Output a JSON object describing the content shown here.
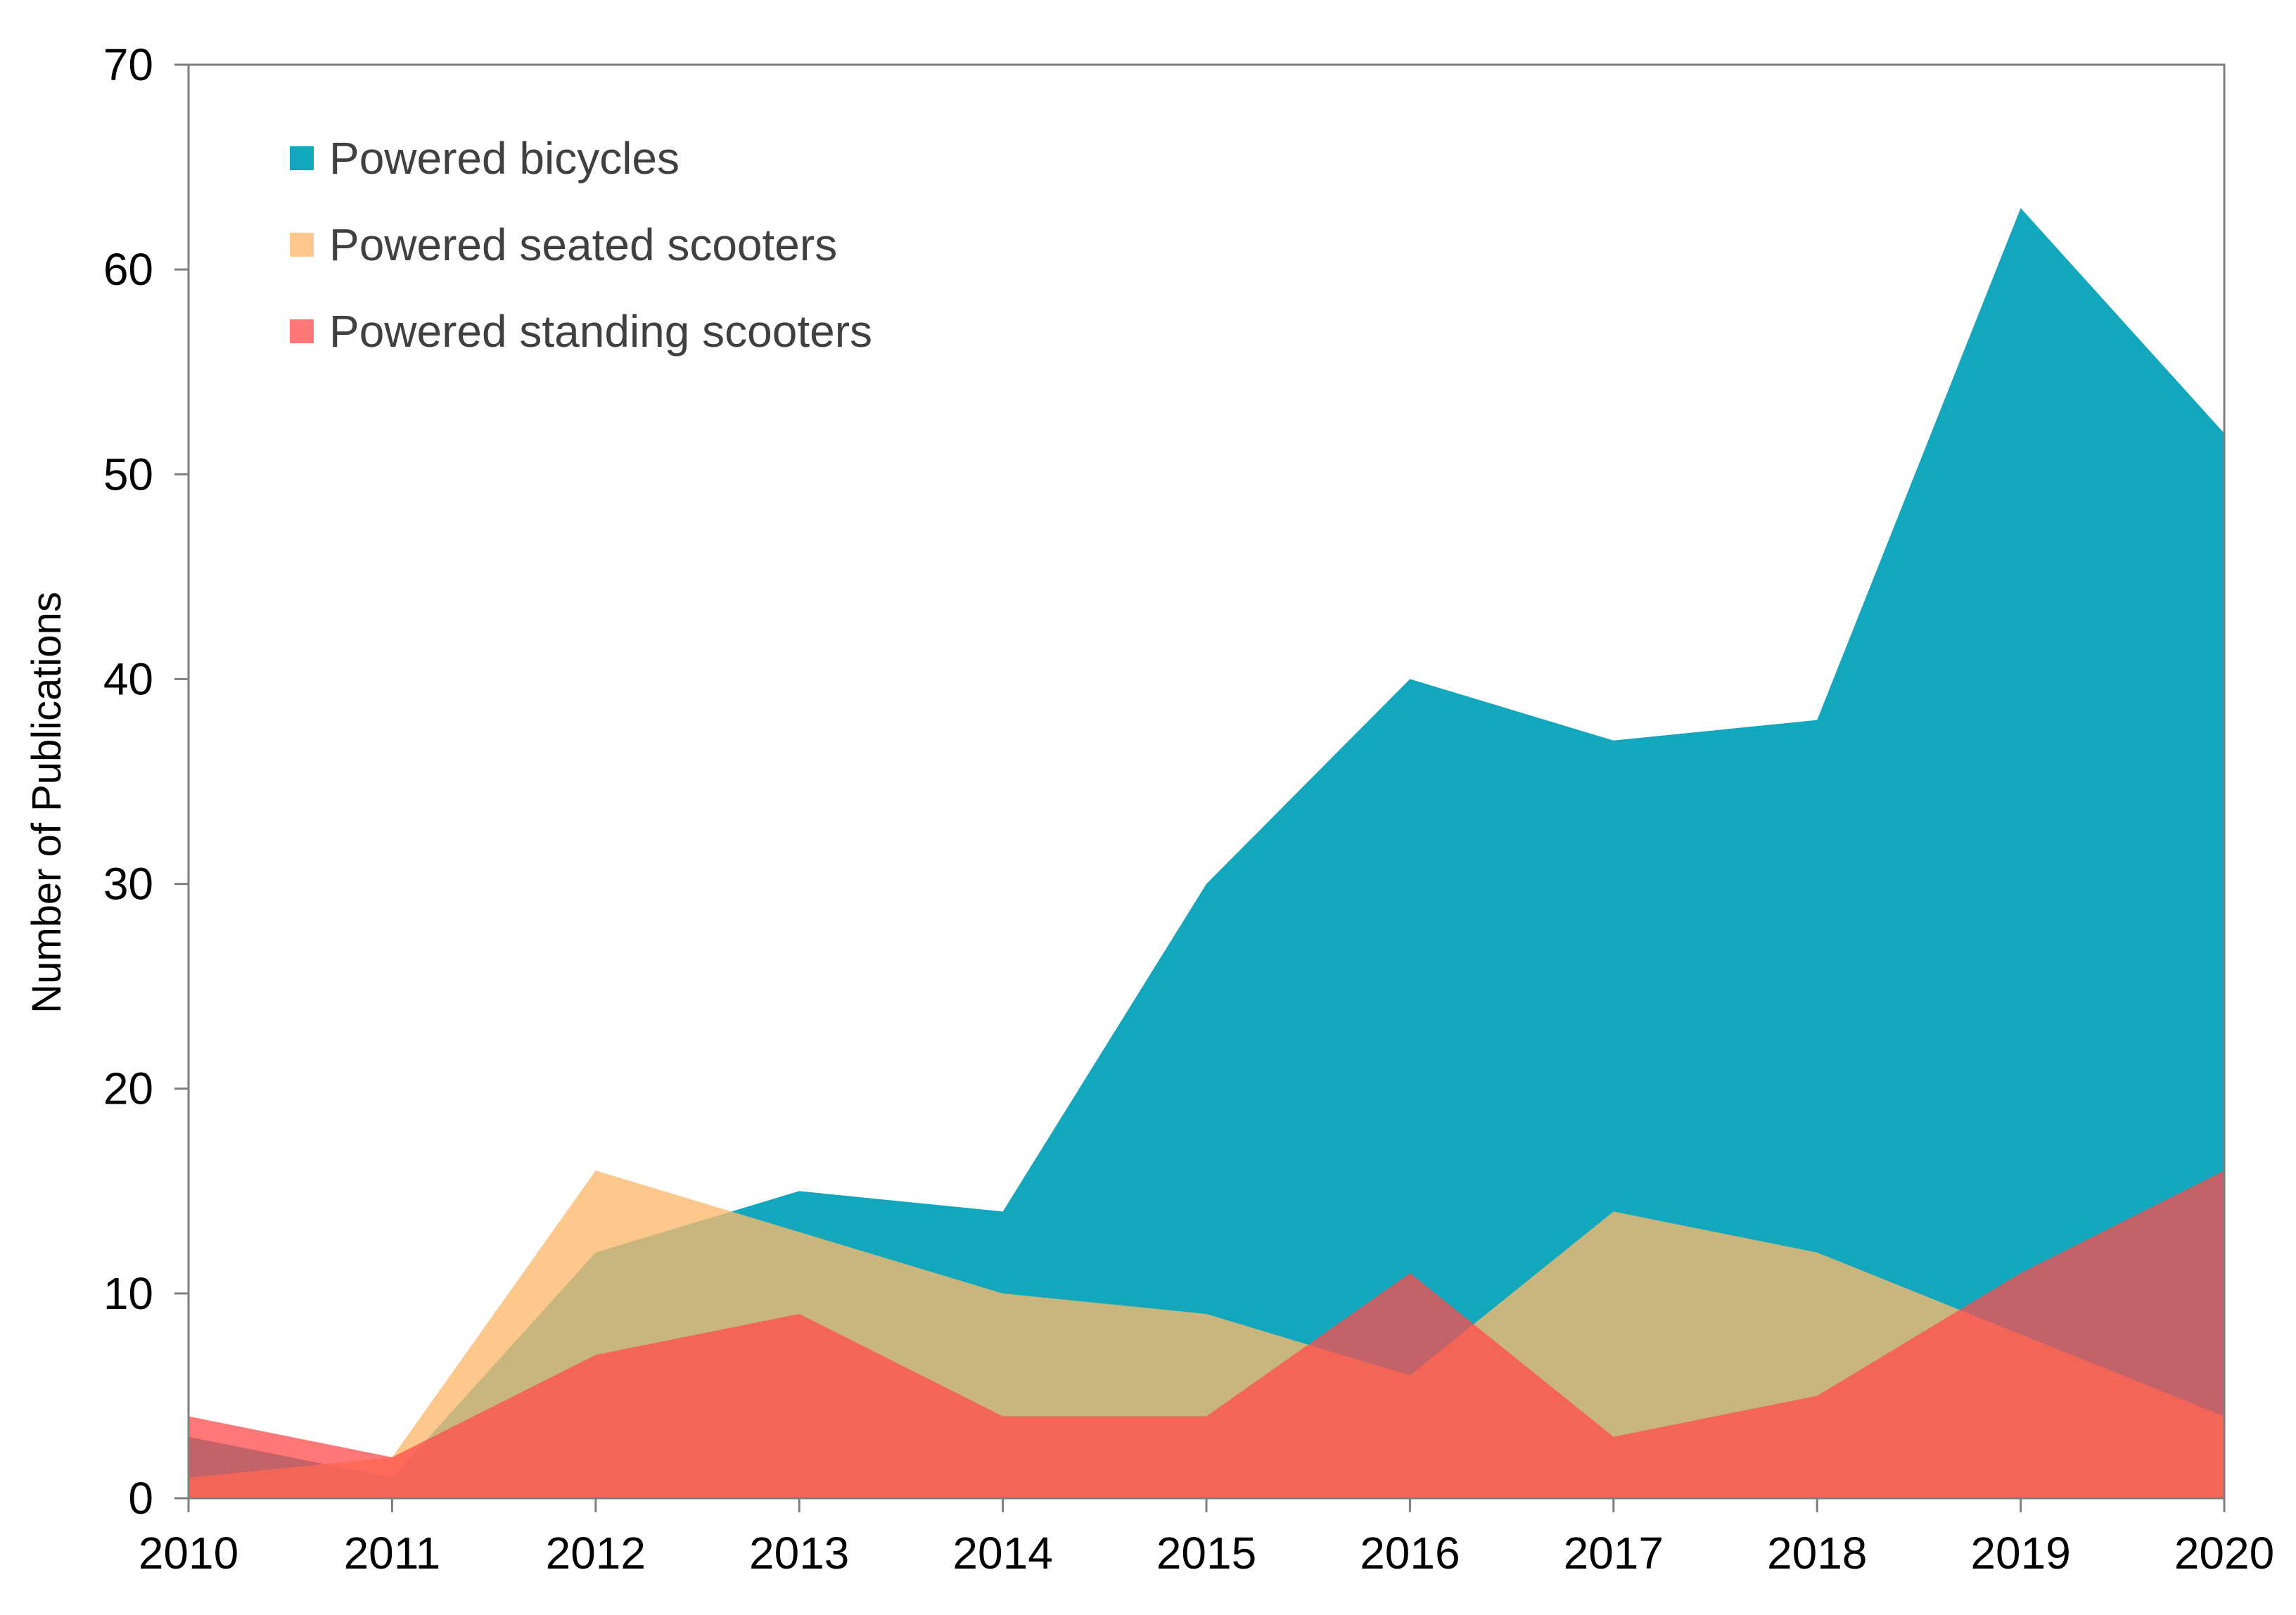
{
  "chart_data": {
    "type": "area",
    "title": "",
    "xlabel": "",
    "ylabel": "Number of Publications",
    "x": [
      "2010",
      "2011",
      "2012",
      "2013",
      "2014",
      "2015",
      "2016",
      "2017",
      "2018",
      "2019",
      "2020"
    ],
    "ylim": [
      0,
      70
    ],
    "yticks": [
      "0",
      "10",
      "20",
      "30",
      "40",
      "50",
      "60",
      "70"
    ],
    "grid": false,
    "legend_position": "top-left",
    "series": [
      {
        "name": "Powered bicycles",
        "color": "#13A7BE",
        "opacity": 1.0,
        "values": [
          3,
          1,
          12,
          15,
          14,
          30,
          40,
          37,
          38,
          63,
          52
        ]
      },
      {
        "name": "Powered seated scooters",
        "color": "#FDB86B",
        "opacity": 0.78,
        "values": [
          1,
          2,
          16,
          13,
          10,
          9,
          6,
          14,
          12,
          8,
          4
        ]
      },
      {
        "name": "Powered standing scooters",
        "color": "#FF4B4B",
        "opacity": 0.75,
        "values": [
          4,
          2,
          7,
          9,
          4,
          4,
          11,
          3,
          5,
          11,
          16
        ]
      }
    ]
  }
}
